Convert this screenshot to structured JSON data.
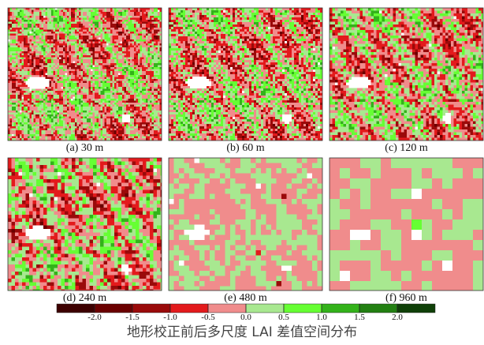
{
  "panels": [
    {
      "caption": "(a) 30 m"
    },
    {
      "caption": "(b) 60 m"
    },
    {
      "caption": "(c) 120 m"
    },
    {
      "caption": "(d) 240 m"
    },
    {
      "caption": "(e) 480 m"
    },
    {
      "caption": "(f) 960 m"
    }
  ],
  "colorbar": {
    "colors": [
      "#3d0000",
      "#6b0000",
      "#9a0a0a",
      "#e31a1c",
      "#f08c8c",
      "#a8e890",
      "#66ff33",
      "#33b21a",
      "#228012",
      "#0f4008"
    ],
    "ticks": [
      {
        "value": -2,
        "label": "-2.0"
      },
      {
        "value": -1.5,
        "label": "-1.5"
      },
      {
        "value": -1,
        "label": "-1.0"
      },
      {
        "value": -0.5,
        "label": "-0.5"
      },
      {
        "value": 0,
        "label": "0.0"
      },
      {
        "value": 0.5,
        "label": "0.5"
      },
      {
        "value": 1,
        "label": "1.0"
      },
      {
        "value": 1.5,
        "label": "1.5"
      },
      {
        "value": 2,
        "label": "2.0"
      }
    ]
  },
  "caption": "地形校正前后多尺度 LAI 差值空间分布"
}
